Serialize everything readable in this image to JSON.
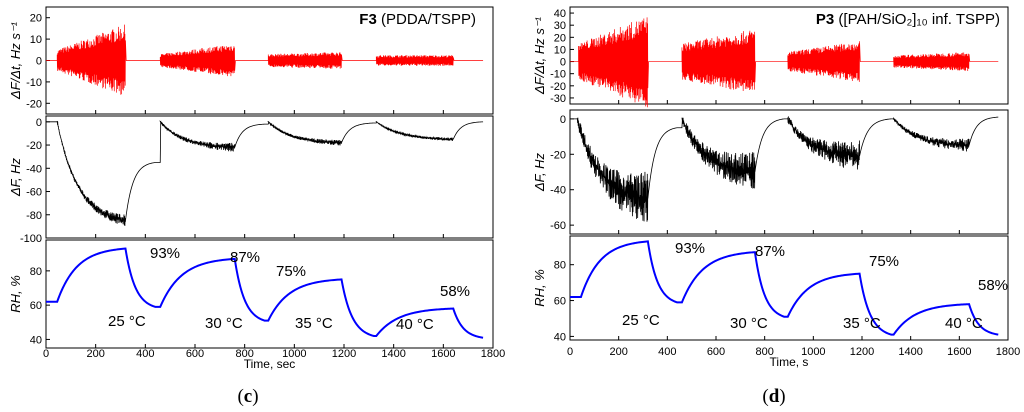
{
  "chart_data": [
    {
      "id": "c",
      "type": "line",
      "panel_label": "c",
      "title_bold": "F3",
      "title_rest": " (PDDA/TSPP)",
      "xlabel": "Time, sec",
      "xlim": [
        0,
        1800
      ],
      "xticks": [
        0,
        200,
        400,
        600,
        800,
        1000,
        1200,
        1400,
        1600,
        1800
      ],
      "subplots": [
        {
          "name": "rate",
          "ylabel": "ΔF/Δt, Hz s⁻¹",
          "ylim": [
            -25,
            25
          ],
          "yticks": [
            -20,
            -10,
            0,
            10,
            20
          ],
          "color": "#ff0000",
          "style": "oscillation",
          "segments": [
            {
              "x0": 45,
              "x1": 320,
              "env_start": 5,
              "env_end": 17
            },
            {
              "x0": 460,
              "x1": 760,
              "env_start": 3,
              "env_end": 8
            },
            {
              "x0": 895,
              "x1": 1190,
              "env_start": 3,
              "env_end": 4
            },
            {
              "x0": 1330,
              "x1": 1640,
              "env_start": 2.5,
              "env_end": 2.5
            }
          ],
          "baseline": 0
        },
        {
          "name": "deltaF",
          "ylabel": "ΔF, Hz",
          "ylim": [
            -100,
            5
          ],
          "yticks": [
            0,
            -20,
            -40,
            -60,
            -80,
            -100
          ],
          "color": "#000000",
          "style": "response",
          "segments": [
            {
              "x0": 45,
              "x1": 320,
              "y_end": -85,
              "noise": 4
            },
            {
              "x0": 460,
              "x1": 760,
              "y_end": -22,
              "noise": 3
            },
            {
              "x0": 895,
              "x1": 1190,
              "y_end": -18,
              "noise": 2
            },
            {
              "x0": 1330,
              "x1": 1640,
              "y_end": -15,
              "noise": 1.2
            }
          ],
          "recovery": [
            {
              "x0": 320,
              "x1": 440,
              "y_start": -85,
              "y_end": -35
            },
            {
              "x0": 760,
              "x1": 880,
              "y_start": -22,
              "y_end": -2
            },
            {
              "x0": 1190,
              "x1": 1320,
              "y_start": -18,
              "y_end": -1
            },
            {
              "x0": 1640,
              "x1": 1760,
              "y_start": -15,
              "y_end": 0
            }
          ]
        },
        {
          "name": "rh",
          "ylabel": "RH, %",
          "ylim": [
            35,
            98
          ],
          "yticks": [
            40,
            60,
            80
          ],
          "color": "#0000ff",
          "style": "rh",
          "segments": [
            {
              "x0": 45,
              "x1": 320,
              "y_start": 62,
              "y_end": 93
            },
            {
              "x0": 460,
              "x1": 760,
              "y_start": 59,
              "y_end": 87
            },
            {
              "x0": 895,
              "x1": 1190,
              "y_start": 51,
              "y_end": 75
            },
            {
              "x0": 1330,
              "x1": 1640,
              "y_start": 42,
              "y_end": 58
            }
          ],
          "recovery": [
            {
              "x0": 320,
              "x1": 440,
              "y_end": 59
            },
            {
              "x0": 760,
              "x1": 880,
              "y_end": 51
            },
            {
              "x0": 1190,
              "x1": 1320,
              "y_end": 42
            },
            {
              "x0": 1640,
              "x1": 1760,
              "y_end": 41
            }
          ],
          "start": {
            "x0": 0,
            "y": 62
          }
        }
      ],
      "rh_labels": [
        "93%",
        "87%",
        "75%",
        "58%"
      ],
      "temp_labels": [
        "25 °C",
        "30 °C",
        "35 °C",
        "40 °C"
      ]
    },
    {
      "id": "d",
      "type": "line",
      "panel_label": "d",
      "title_bold": "P3",
      "title_rest": " ([PAH/SiO₂]₁₀ inf. TSPP)",
      "xlabel": "Time, s",
      "xlim": [
        0,
        1800
      ],
      "xticks": [
        0,
        200,
        400,
        600,
        800,
        1000,
        1200,
        1400,
        1600,
        1800
      ],
      "subplots": [
        {
          "name": "rate",
          "ylabel": "ΔF/Δt, Hz s⁻¹",
          "ylim": [
            -35,
            45
          ],
          "yticks": [
            -30,
            -20,
            -10,
            0,
            10,
            20,
            30,
            40
          ],
          "color": "#ff0000",
          "style": "oscillation",
          "segments": [
            {
              "x0": 35,
              "x1": 320,
              "env_start": 15,
              "env_end": 38
            },
            {
              "x0": 460,
              "x1": 760,
              "env_start": 15,
              "env_end": 27
            },
            {
              "x0": 895,
              "x1": 1190,
              "env_start": 8,
              "env_end": 17
            },
            {
              "x0": 1330,
              "x1": 1640,
              "env_start": 5,
              "env_end": 8
            }
          ],
          "baseline": 0
        },
        {
          "name": "deltaF",
          "ylabel": "ΔF, Hz",
          "ylim": [
            -65,
            5
          ],
          "yticks": [
            0,
            -20,
            -40,
            -60
          ],
          "color": "#000000",
          "style": "response",
          "segments": [
            {
              "x0": 30,
              "x1": 320,
              "y_end": -45,
              "noise": 12
            },
            {
              "x0": 460,
              "x1": 760,
              "y_end": -30,
              "noise": 9
            },
            {
              "x0": 895,
              "x1": 1190,
              "y_end": -21,
              "noise": 7
            },
            {
              "x0": 1330,
              "x1": 1640,
              "y_end": -15,
              "noise": 3
            }
          ],
          "recovery": [
            {
              "x0": 320,
              "x1": 440,
              "y_start": -45,
              "y_end": -5
            },
            {
              "x0": 760,
              "x1": 880,
              "y_start": -30,
              "y_end": 0
            },
            {
              "x0": 1190,
              "x1": 1320,
              "y_start": -21,
              "y_end": 0
            },
            {
              "x0": 1640,
              "x1": 1760,
              "y_start": -15,
              "y_end": 1
            }
          ]
        },
        {
          "name": "rh",
          "ylabel": "RH, %",
          "ylim": [
            38,
            96
          ],
          "yticks": [
            40,
            60,
            80
          ],
          "color": "#0000ff",
          "style": "rh",
          "segments": [
            {
              "x0": 45,
              "x1": 320,
              "y_start": 62,
              "y_end": 93
            },
            {
              "x0": 460,
              "x1": 760,
              "y_start": 59,
              "y_end": 87
            },
            {
              "x0": 895,
              "x1": 1190,
              "y_start": 51,
              "y_end": 75
            },
            {
              "x0": 1330,
              "x1": 1640,
              "y_start": 41,
              "y_end": 58
            }
          ],
          "recovery": [
            {
              "x0": 320,
              "x1": 440,
              "y_end": 59
            },
            {
              "x0": 760,
              "x1": 880,
              "y_end": 51
            },
            {
              "x0": 1190,
              "x1": 1320,
              "y_end": 41
            },
            {
              "x0": 1640,
              "x1": 1760,
              "y_end": 41
            }
          ],
          "start": {
            "x0": 0,
            "y": 62
          }
        }
      ],
      "rh_labels": [
        "93%",
        "87%",
        "75%",
        "58%"
      ],
      "temp_labels": [
        "25 °C",
        "30 °C",
        "35 °C",
        "40 °C"
      ]
    }
  ]
}
